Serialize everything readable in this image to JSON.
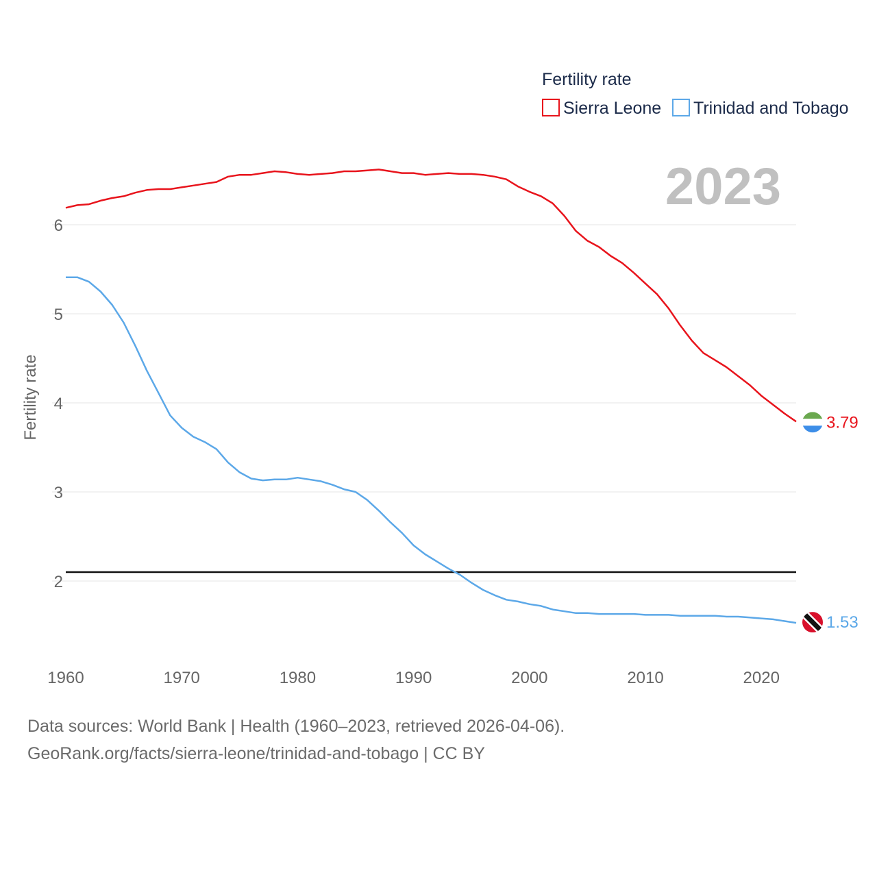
{
  "chart_data": {
    "type": "line",
    "legend_title": "Fertility rate",
    "ylabel": "Fertility rate",
    "xlabel": "",
    "year_watermark": "2023",
    "xlim": [
      1960,
      2023
    ],
    "ylim": [
      1.2,
      6.8
    ],
    "x_ticks": [
      1960,
      1970,
      1980,
      1990,
      2000,
      2010,
      2020
    ],
    "y_ticks": [
      2,
      3,
      4,
      5,
      6
    ],
    "reference_line": {
      "y": 2.1
    },
    "x": [
      1960,
      1961,
      1962,
      1963,
      1964,
      1965,
      1966,
      1967,
      1968,
      1969,
      1970,
      1971,
      1972,
      1973,
      1974,
      1975,
      1976,
      1977,
      1978,
      1979,
      1980,
      1981,
      1982,
      1983,
      1984,
      1985,
      1986,
      1987,
      1988,
      1989,
      1990,
      1991,
      1992,
      1993,
      1994,
      1995,
      1996,
      1997,
      1998,
      1999,
      2000,
      2001,
      2002,
      2003,
      2004,
      2005,
      2006,
      2007,
      2008,
      2009,
      2010,
      2011,
      2012,
      2013,
      2014,
      2015,
      2016,
      2017,
      2018,
      2019,
      2020,
      2021,
      2022,
      2023
    ],
    "series": [
      {
        "name": "Sierra Leone",
        "color": "#e8141c",
        "end_label": "3.79",
        "flag": "sierra-leone-flag-icon",
        "values": [
          6.19,
          6.22,
          6.23,
          6.27,
          6.3,
          6.32,
          6.36,
          6.39,
          6.4,
          6.4,
          6.42,
          6.44,
          6.46,
          6.48,
          6.54,
          6.56,
          6.56,
          6.58,
          6.6,
          6.59,
          6.57,
          6.56,
          6.57,
          6.58,
          6.6,
          6.6,
          6.61,
          6.62,
          6.6,
          6.58,
          6.58,
          6.56,
          6.57,
          6.58,
          6.57,
          6.57,
          6.56,
          6.54,
          6.51,
          6.43,
          6.37,
          6.32,
          6.24,
          6.1,
          5.93,
          5.82,
          5.75,
          5.65,
          5.57,
          5.46,
          5.34,
          5.22,
          5.06,
          4.87,
          4.7,
          4.56,
          4.48,
          4.4,
          4.3,
          4.2,
          4.08,
          3.98,
          3.88,
          3.79
        ]
      },
      {
        "name": "Trinidad and Tobago",
        "color": "#5ca8e8",
        "end_label": "1.53",
        "flag": "trinidad-and-tobago-flag-icon",
        "values": [
          5.41,
          5.41,
          5.36,
          5.25,
          5.1,
          4.9,
          4.64,
          4.36,
          4.11,
          3.86,
          3.72,
          3.62,
          3.56,
          3.48,
          3.33,
          3.22,
          3.15,
          3.13,
          3.14,
          3.14,
          3.16,
          3.14,
          3.12,
          3.08,
          3.03,
          3.0,
          2.91,
          2.79,
          2.66,
          2.54,
          2.4,
          2.3,
          2.22,
          2.14,
          2.07,
          1.98,
          1.9,
          1.84,
          1.79,
          1.77,
          1.74,
          1.72,
          1.68,
          1.66,
          1.64,
          1.64,
          1.63,
          1.63,
          1.63,
          1.63,
          1.62,
          1.62,
          1.62,
          1.61,
          1.61,
          1.61,
          1.61,
          1.6,
          1.6,
          1.59,
          1.58,
          1.57,
          1.55,
          1.53
        ]
      }
    ]
  },
  "footer": {
    "source": "Data sources: World Bank | Health (1960–2023, retrieved 2026-04-06).",
    "credit": "GeoRank.org/facts/sierra-leone/trinidad-and-tobago | CC BY"
  }
}
